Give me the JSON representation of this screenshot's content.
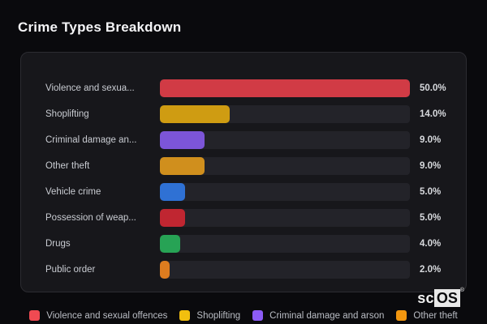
{
  "title": "Crime Types Breakdown",
  "colors": {
    "page_bg": "#0a0a0d",
    "panel_bg": "#17171b",
    "panel_border": "#2c2c31",
    "bar_track": "#232329",
    "label_text": "#c9ccd2",
    "value_text": "#d8dade",
    "legend_text": "#babdc4",
    "title_text": "#f4f4f6"
  },
  "chart_data": {
    "type": "bar",
    "orientation": "horizontal",
    "title": "Crime Types Breakdown",
    "xlabel": "",
    "ylabel": "",
    "xlim": [
      0,
      50
    ],
    "grid": false,
    "legend_position": "bottom",
    "categories": [
      "Violence and sexua...",
      "Shoplifting",
      "Criminal damage an...",
      "Other theft",
      "Vehicle crime",
      "Possession of weap...",
      "Drugs",
      "Public order"
    ],
    "values": [
      50.0,
      14.0,
      9.0,
      9.0,
      5.0,
      5.0,
      4.0,
      2.0
    ],
    "value_labels": [
      "50.0%",
      "14.0%",
      "9.0%",
      "9.0%",
      "5.0%",
      "5.0%",
      "4.0%",
      "2.0%"
    ],
    "bar_colors": [
      "#d13b45",
      "#cf9c12",
      "#7c55d8",
      "#d08f1d",
      "#2f71d4",
      "#c02631",
      "#27a355",
      "#dd7c1f"
    ],
    "legend": [
      {
        "label": "Violence and sexual offences",
        "color": "#f04a52"
      },
      {
        "label": "Shoplifting",
        "color": "#f2bf0e"
      },
      {
        "label": "Criminal damage and arson",
        "color": "#8c5cf6"
      },
      {
        "label": "Other theft",
        "color": "#f2960f"
      }
    ]
  },
  "watermark": {
    "prefix": "sc",
    "suffix": "OS",
    "registered": "®"
  }
}
